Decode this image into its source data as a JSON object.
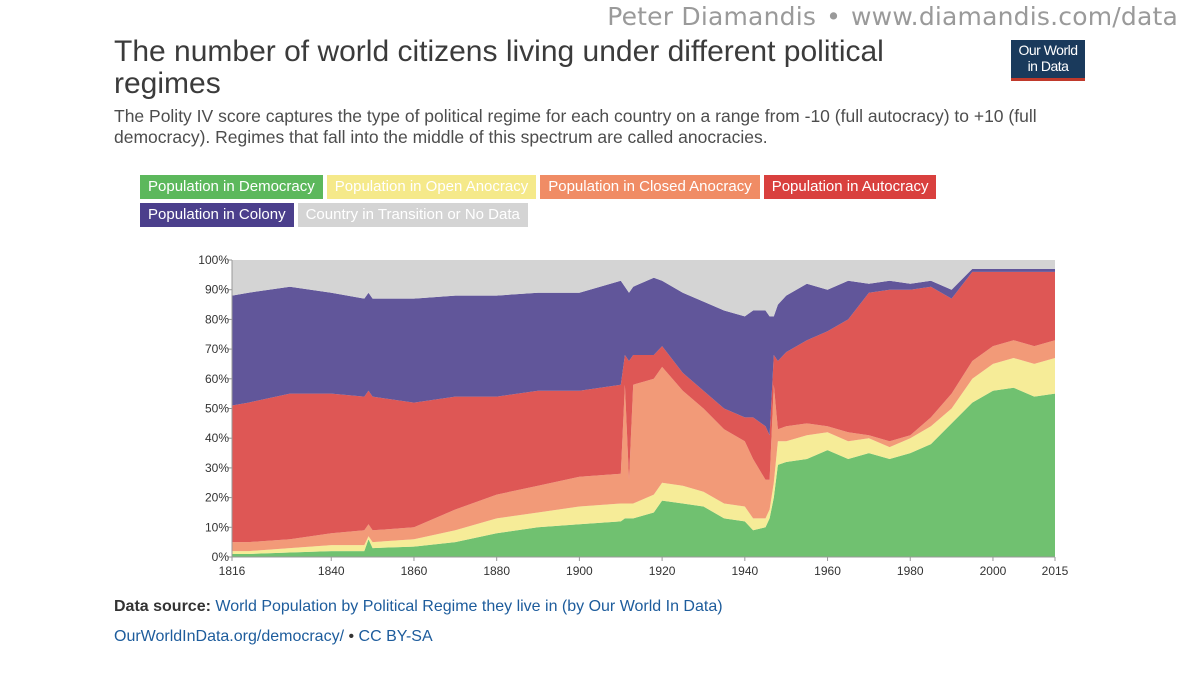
{
  "watermark": {
    "author": "Peter Diamandis",
    "separator": "•",
    "url": "www.diamandis.com/data"
  },
  "logo": {
    "line1": "Our World",
    "line2": "in Data"
  },
  "header": {
    "title": "The number of world citizens living under different political regimes",
    "subtitle": "The Polity IV score captures the type of political regime for each country on a range from -10 (full autocracy) to +10 (full democracy). Regimes that fall into the middle of this spectrum are called anocracies."
  },
  "footer": {
    "source_label": "Data source:",
    "source_text": "World Population by Political Regime they live in (by Our World In Data)",
    "link": "OurWorldInData.org/democracy/",
    "separator": "•",
    "license": "CC BY-SA"
  },
  "chart_data": {
    "type": "area",
    "stacked": true,
    "xlim": [
      1816,
      2015
    ],
    "ylim": [
      0,
      100
    ],
    "x_ticks": [
      "1816",
      "1840",
      "1860",
      "1880",
      "1900",
      "1920",
      "1940",
      "1960",
      "1980",
      "2000",
      "2015"
    ],
    "y_ticks": [
      "0%",
      "10%",
      "20%",
      "30%",
      "40%",
      "50%",
      "60%",
      "70%",
      "80%",
      "90%",
      "100%"
    ],
    "legend_position": "top",
    "grid": false,
    "x": [
      1816,
      1820,
      1830,
      1840,
      1848,
      1849,
      1850,
      1860,
      1870,
      1880,
      1890,
      1900,
      1910,
      1911,
      1912,
      1913,
      1918,
      1920,
      1925,
      1930,
      1935,
      1940,
      1942,
      1945,
      1946,
      1947,
      1948,
      1950,
      1955,
      1960,
      1965,
      1970,
      1975,
      1980,
      1985,
      1990,
      1995,
      2000,
      2005,
      2010,
      2015
    ],
    "series": [
      {
        "name": "Population in Democracy",
        "color": "#5cb85c",
        "values": [
          1,
          1,
          1.5,
          2,
          2,
          6,
          3,
          3.5,
          5,
          8,
          10,
          11,
          12,
          13,
          13,
          13,
          15,
          19,
          18,
          17,
          13,
          12,
          9,
          10,
          13,
          20,
          31,
          32,
          33,
          36,
          33,
          35,
          33,
          35,
          38,
          45,
          52,
          56,
          57,
          54,
          55
        ]
      },
      {
        "name": "Population in Open Anocracy",
        "color": "#f5e98a",
        "values": [
          1,
          1,
          1.5,
          2,
          2,
          1,
          2,
          2.5,
          4,
          5,
          5,
          6,
          6,
          5,
          5,
          5,
          6,
          6,
          6,
          5,
          5,
          5,
          4,
          3,
          3,
          5,
          8,
          7,
          8,
          6,
          6,
          5,
          4,
          5,
          6,
          5,
          8,
          9,
          10,
          11,
          12
        ]
      },
      {
        "name": "Population in Closed Anocracy",
        "color": "#f08c65",
        "values": [
          3,
          3,
          3,
          4,
          5,
          4,
          4,
          4,
          7,
          8,
          9,
          10,
          10,
          40,
          8,
          40,
          39,
          39,
          32,
          28,
          25,
          22,
          20,
          13,
          10,
          33,
          4,
          5,
          4,
          2,
          3,
          1,
          2,
          1,
          3,
          5,
          6,
          6,
          6,
          6,
          6
        ]
      },
      {
        "name": "Population in Autocracy",
        "color": "#d9403e",
        "values": [
          46,
          47,
          49,
          47,
          45,
          45,
          45,
          42,
          38,
          33,
          32,
          29,
          30,
          10,
          40,
          10,
          8,
          7,
          6,
          6,
          7,
          8,
          14,
          18,
          15,
          10,
          23,
          25,
          28,
          32,
          38,
          48,
          51,
          49,
          44,
          32,
          30,
          25,
          23,
          25,
          23
        ]
      },
      {
        "name": "Population in Colony",
        "color": "#4b3f8c",
        "values": [
          37,
          37,
          36,
          34,
          33,
          33,
          33,
          35,
          34,
          34,
          33,
          33,
          35,
          23,
          23,
          23,
          26,
          22,
          27,
          30,
          33,
          34,
          36,
          39,
          40,
          13,
          19,
          19,
          19,
          14,
          13,
          3,
          3,
          2,
          2,
          3,
          1,
          1,
          1,
          1,
          1
        ]
      },
      {
        "name": "Country in Transition or No Data",
        "color": "#d4d4d4",
        "values": [
          12,
          11,
          9,
          11,
          13,
          11,
          13,
          13,
          12,
          12,
          11,
          11,
          7,
          9,
          11,
          9,
          6,
          7,
          11,
          14,
          17,
          19,
          17,
          17,
          19,
          19,
          15,
          12,
          8,
          10,
          7,
          8,
          7,
          8,
          7,
          10,
          3,
          3,
          3,
          3,
          3
        ]
      }
    ]
  }
}
